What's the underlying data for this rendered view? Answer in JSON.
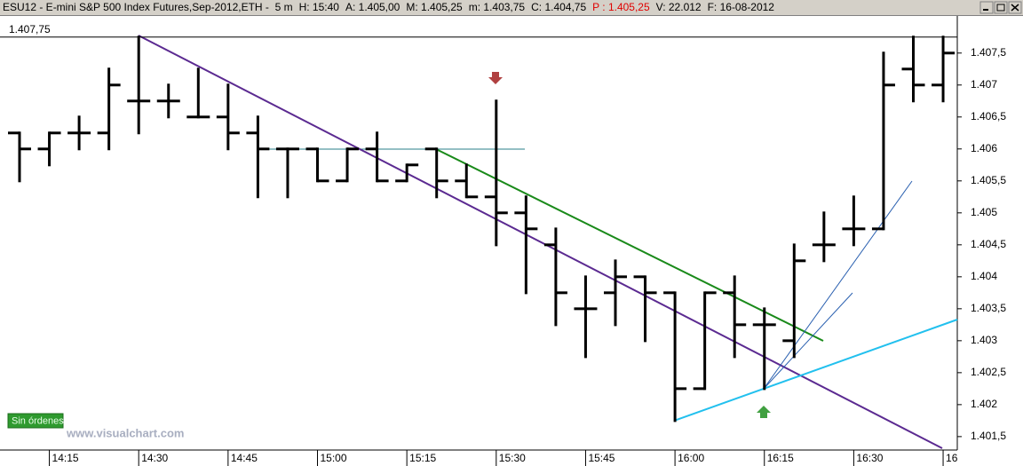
{
  "chart_data": {
    "type": "ohlc",
    "header": [
      {
        "text": "ESU12 - E-mini S&P 500 Index Futures,Sep-2012,ETH -  5 m",
        "color": "#000000"
      },
      {
        "text": "H: 15:40",
        "color": "#000000"
      },
      {
        "text": "A: 1.405,00",
        "color": "#000000"
      },
      {
        "text": "M: 1.405,25",
        "color": "#000000"
      },
      {
        "text": "m: 1.403,75",
        "color": "#000000"
      },
      {
        "text": "C: 1.404,75",
        "color": "#000000"
      },
      {
        "text": "P : 1.405,25",
        "color": "#e00000"
      },
      {
        "text": "V: 22.012",
        "color": "#000000"
      },
      {
        "text": "F: 16-08-2012",
        "color": "#000000"
      }
    ],
    "price_line": {
      "value": 1407.75,
      "label": "1.407,75"
    },
    "status": "Sin órdenes",
    "watermark": "www.visualchart.com",
    "color": "#000000",
    "categories": [
      null,
      "14:15",
      null,
      null,
      "14:30",
      null,
      null,
      "14:45",
      null,
      null,
      "15:00",
      null,
      null,
      "15:15",
      null,
      null,
      "15:30",
      null,
      null,
      "15:45",
      null,
      null,
      "16:00",
      null,
      null,
      "16:15",
      null,
      null,
      "16:30",
      null,
      null,
      "16"
    ],
    "open": [
      1406.25,
      1406,
      1406.25,
      1406.25,
      1406.75,
      1406.75,
      1406.5,
      1406.5,
      1406.25,
      1406,
      1406,
      1405.5,
      1406,
      1405.5,
      1406,
      1405.5,
      1405.25,
      1405,
      1404.5,
      1403.5,
      1403.75,
      1404,
      1403.75,
      1402.25,
      1403.75,
      1403.25,
      1403,
      1404.5,
      1404.75,
      1404.75,
      1407.25,
      1407
    ],
    "high": [
      1406.25,
      1406.25,
      1406.5,
      1407.25,
      1407.75,
      1407,
      1407.25,
      1407,
      1406.5,
      1406,
      1406,
      1406,
      1406.25,
      1405.75,
      1406,
      1405.75,
      1406.75,
      1405.25,
      1404.75,
      1404,
      1404.25,
      1404,
      1403.75,
      1403.75,
      1404,
      1403.5,
      1404.5,
      1405,
      1405.25,
      1407.5,
      1407.75,
      1407.75
    ],
    "low": [
      1405.5,
      1405.75,
      1406,
      1406,
      1406.25,
      1406.5,
      1406.5,
      1406,
      1405.25,
      1405.25,
      1405.5,
      1405.5,
      1405.5,
      1405.5,
      1405.25,
      1405.25,
      1404.5,
      1403.75,
      1403.25,
      1402.75,
      1403.25,
      1403,
      1401.75,
      1402.25,
      1402.75,
      1402.25,
      1402.75,
      1404.25,
      1404.5,
      1404.75,
      1406.75,
      1406.75
    ],
    "close": [
      1406,
      1406.25,
      1406.25,
      1407,
      1406.75,
      1406.75,
      1406.5,
      1406.25,
      1406,
      1406,
      1405.5,
      1406,
      1405.5,
      1405.75,
      1405.5,
      1405.25,
      1405,
      1404.75,
      1403.75,
      1403.5,
      1404,
      1403.75,
      1402.25,
      1403.75,
      1403.25,
      1403.25,
      1404.25,
      1404.5,
      1404.75,
      1407,
      1407,
      1407.5
    ],
    "ylim": [
      1401.29,
      1408.08
    ],
    "yticks": [
      {
        "value": 1401.5,
        "label": "1.401,5"
      },
      {
        "value": 1402,
        "label": "1.402"
      },
      {
        "value": 1402.5,
        "label": "1.402,5"
      },
      {
        "value": 1403,
        "label": "1.403"
      },
      {
        "value": 1403.5,
        "label": "1.403,5"
      },
      {
        "value": 1404,
        "label": "1.404"
      },
      {
        "value": 1404.5,
        "label": "1.404,5"
      },
      {
        "value": 1405,
        "label": "1.405"
      },
      {
        "value": 1405.5,
        "label": "1.405,5"
      },
      {
        "value": 1406,
        "label": "1.406"
      },
      {
        "value": 1406.5,
        "label": "1.406,5"
      },
      {
        "value": 1407,
        "label": "1.407"
      },
      {
        "value": 1407.5,
        "label": "1.407,5"
      }
    ],
    "grid": false
  }
}
